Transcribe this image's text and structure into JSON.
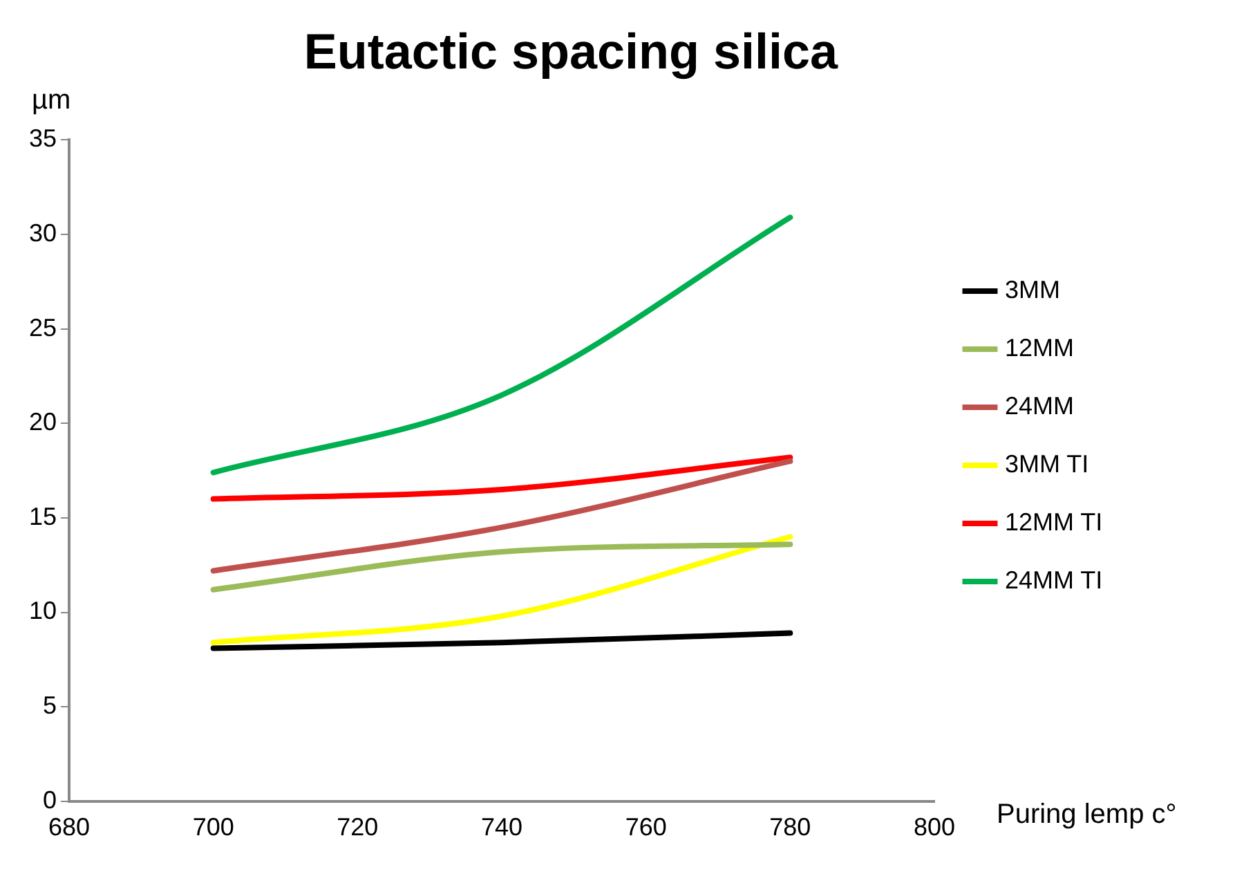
{
  "chart_data": {
    "type": "line",
    "title": "Eutactic spacing silica",
    "ylabel": "µm",
    "xlabel": "Puring lemp c°",
    "x": [
      700,
      740,
      780
    ],
    "xlim": [
      680,
      800
    ],
    "xticks": [
      680,
      700,
      720,
      740,
      760,
      780,
      800
    ],
    "ylim": [
      0,
      35
    ],
    "yticks": [
      0,
      5,
      10,
      15,
      20,
      25,
      30,
      35
    ],
    "legend": "right",
    "marker": "none",
    "series": [
      {
        "name": "3MM",
        "color": "#000000",
        "values": [
          8.1,
          8.4,
          8.9
        ]
      },
      {
        "name": "12MM",
        "color": "#9bbb59",
        "values": [
          11.2,
          13.2,
          13.6
        ]
      },
      {
        "name": "24MM",
        "color": "#c0504d",
        "values": [
          12.2,
          14.5,
          18.0
        ]
      },
      {
        "name": "3MM TI",
        "color": "#ffff00",
        "values": [
          8.4,
          9.8,
          14.0
        ]
      },
      {
        "name": "12MM TI",
        "color": "#ff0000",
        "values": [
          16.0,
          16.5,
          18.2
        ]
      },
      {
        "name": "24MM TI",
        "color": "#00b050",
        "values": [
          17.4,
          21.5,
          30.9
        ]
      }
    ]
  }
}
